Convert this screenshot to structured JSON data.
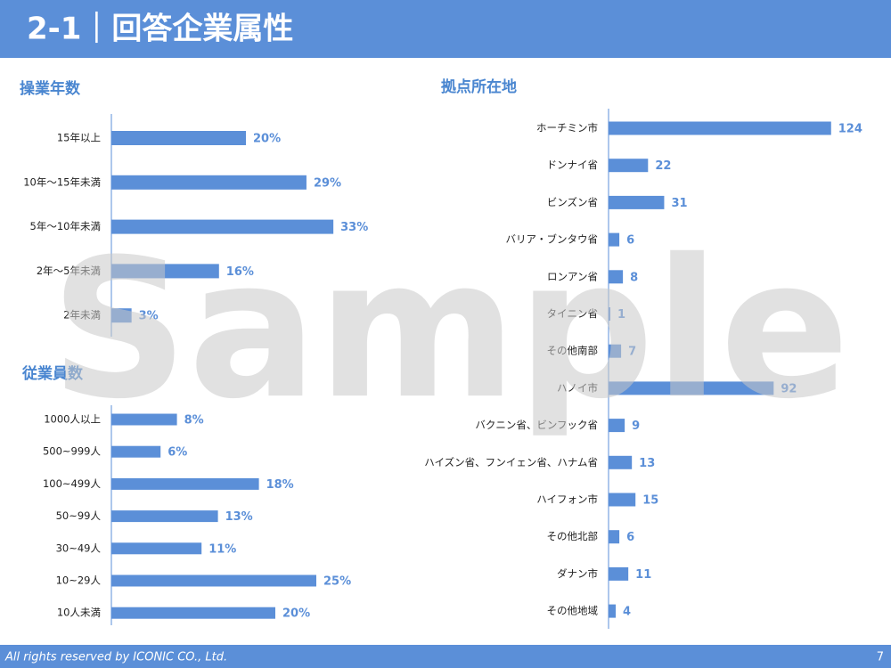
{
  "header": {
    "title": "2-1｜回答企業属性"
  },
  "footer": {
    "copyright": "All rights reserved by ICONIC CO., Ltd.",
    "page": "7"
  },
  "watermark": "Sample",
  "chart_data": [
    {
      "type": "bar",
      "orientation": "horizontal",
      "title": "操業年数",
      "categories": [
        "15年以上",
        "10年～15年未満",
        "5年～10年未満",
        "2年～5年未満",
        "2年未満"
      ],
      "values": [
        20,
        29,
        33,
        16,
        3
      ],
      "value_labels": [
        "20%",
        "29%",
        "33%",
        "16%",
        "3%"
      ],
      "color": "#5b8fd8",
      "xlim": [
        0,
        40
      ]
    },
    {
      "type": "bar",
      "orientation": "horizontal",
      "title": "従業員数",
      "categories": [
        "1000人以上",
        "500~999人",
        "100~499人",
        "50~99人",
        "30~49人",
        "10~29人",
        "10人未満"
      ],
      "values": [
        8,
        6,
        18,
        13,
        11,
        25,
        20
      ],
      "value_labels": [
        "8%",
        "6%",
        "18%",
        "13%",
        "11%",
        "25%",
        "20%"
      ],
      "color": "#5b8fd8",
      "xlim": [
        0,
        30
      ]
    },
    {
      "type": "bar",
      "orientation": "horizontal",
      "title": "拠点所在地",
      "categories": [
        "ホーチミン市",
        "ドンナイ省",
        "ビンズン省",
        "バリア・ブンタウ省",
        "ロンアン省",
        "タイニン省",
        "その他南部",
        "ハノイ市",
        "バクニン省、ビンフック省",
        "ハイズン省、フンイェン省、ハナム省",
        "ハイフォン市",
        "その他北部",
        "ダナン市",
        "その他地域"
      ],
      "values": [
        124,
        22,
        31,
        6,
        8,
        1,
        7,
        92,
        9,
        13,
        15,
        6,
        11,
        4
      ],
      "color": "#5b8fd8",
      "xlim": [
        0,
        140
      ]
    }
  ]
}
